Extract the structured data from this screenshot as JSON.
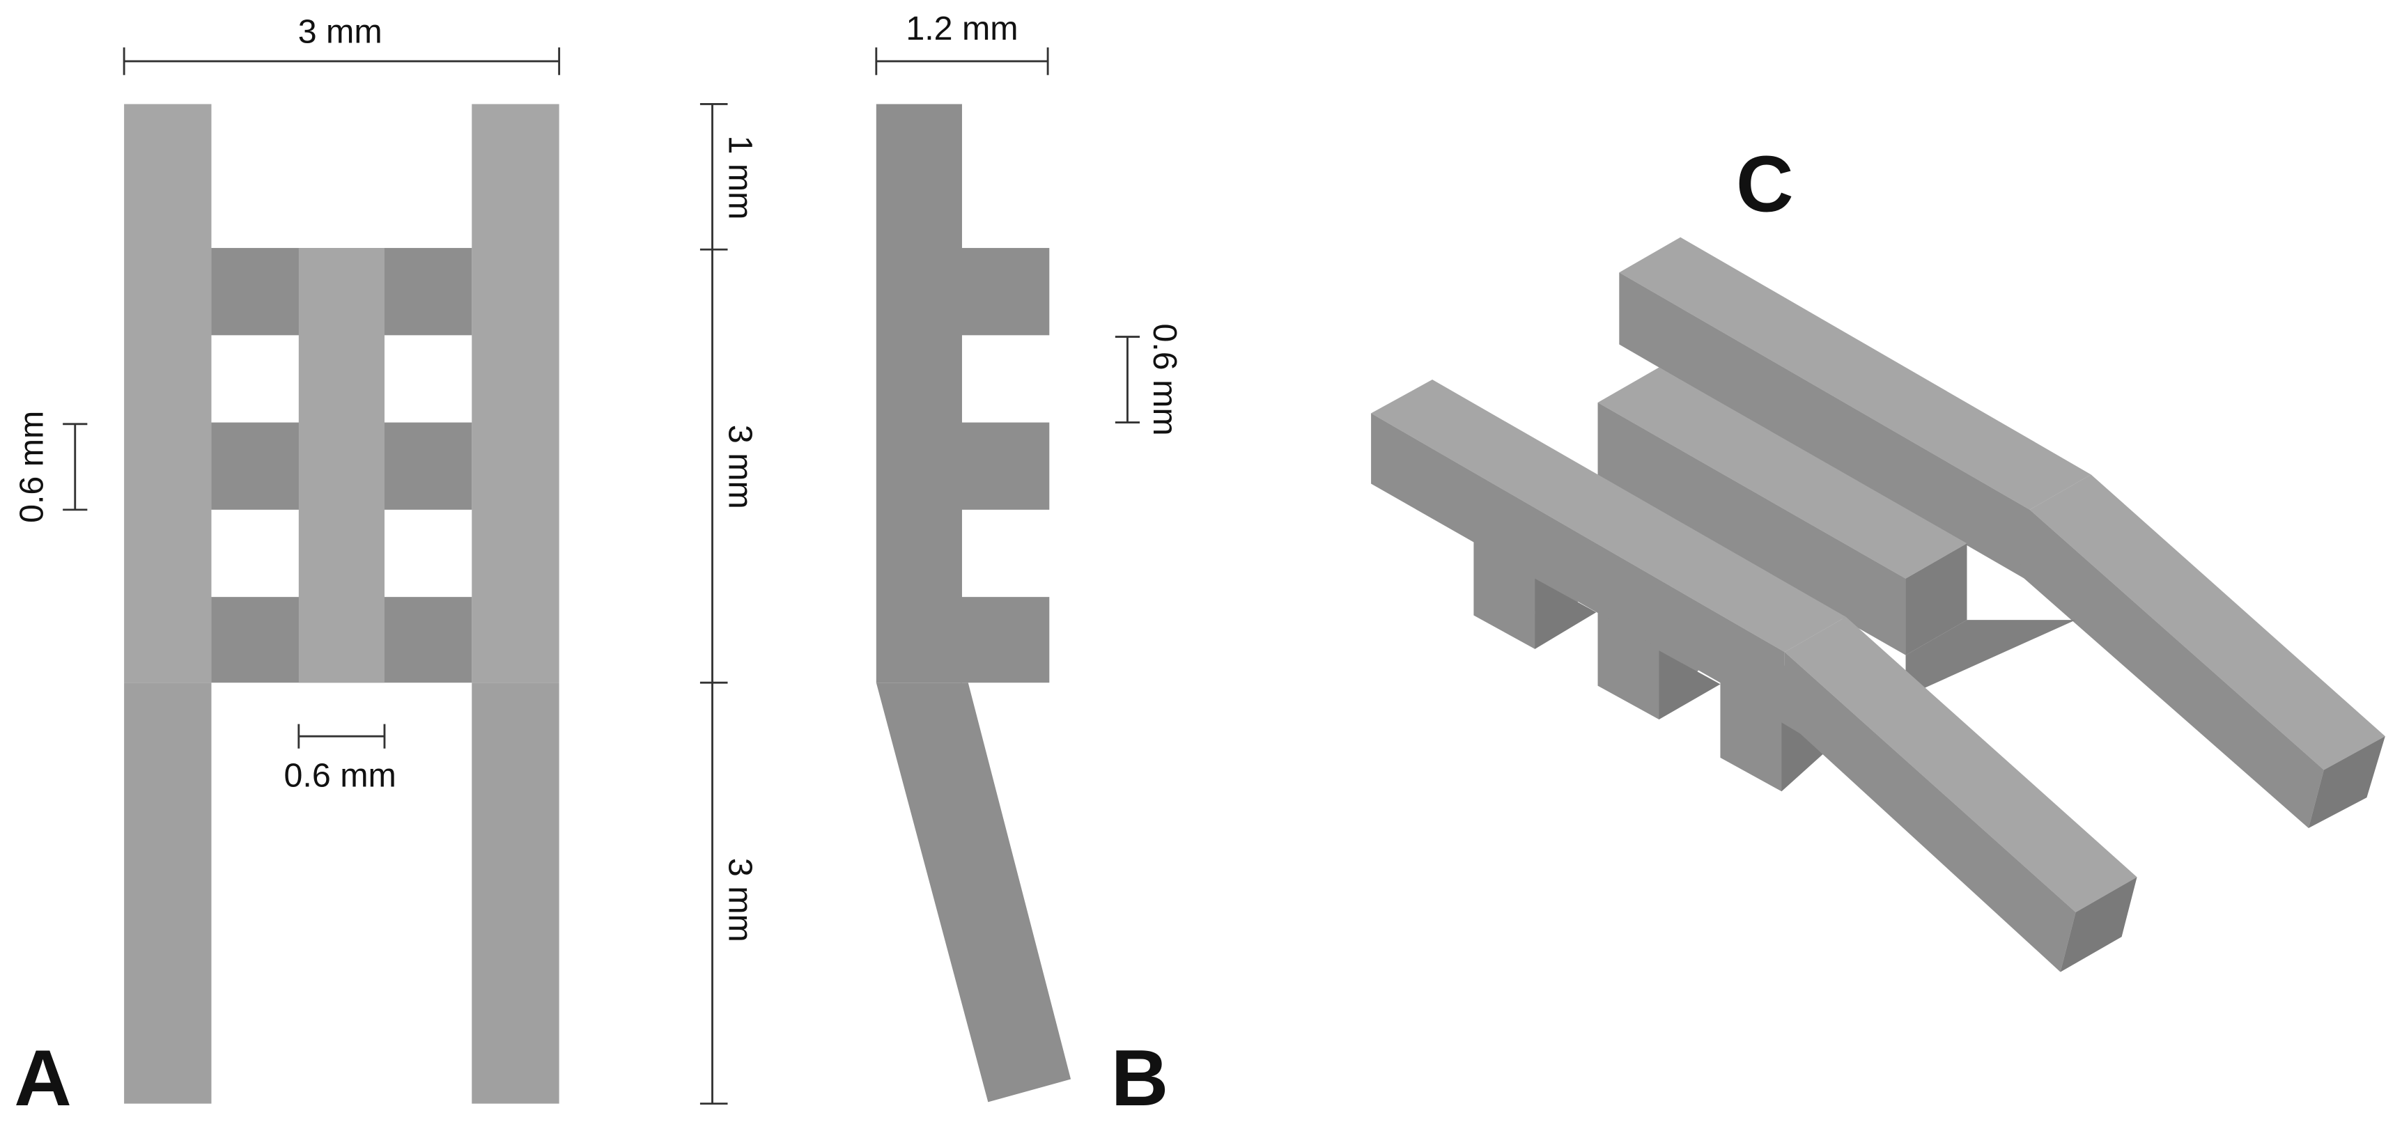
{
  "panels": {
    "a": {
      "label": "A",
      "width": "3 mm",
      "bar_gap": "0.6 mm",
      "bar_width": "0.6 mm"
    },
    "b": {
      "label": "B",
      "width": "1.2 mm",
      "tooth_gap": "0.6 mm",
      "height_top": "1 mm",
      "height_mid": "3 mm",
      "height_bottom": "3 mm"
    },
    "c": {
      "label": "C"
    }
  }
}
